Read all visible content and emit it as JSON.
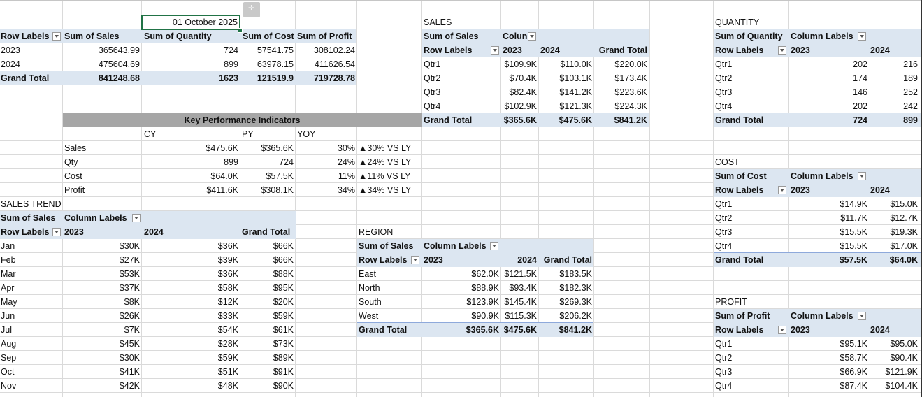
{
  "date_cell": "01 October 2025",
  "summary": {
    "headers": [
      "Row Labels",
      "Sum of Sales",
      "Sum of Quantity",
      "Sum of Cost",
      "Sum of Profit"
    ],
    "rows": [
      [
        "2023",
        "365643.99",
        "724",
        "57541.75",
        "308102.24"
      ],
      [
        "2024",
        "475604.69",
        "899",
        "63978.15",
        "411626.54"
      ]
    ],
    "total": [
      "Grand Total",
      "841248.68",
      "1623",
      "121519.9",
      "719728.78"
    ]
  },
  "kpi": {
    "title": "Key Performance Indicators",
    "col_cy": "CY",
    "col_py": "PY",
    "col_yoy": "YOY",
    "rows": [
      {
        "label": "Sales",
        "cy": "$475.6K",
        "py": "$365.6K",
        "yoy": "30%",
        "vs": "▲30% VS LY"
      },
      {
        "label": "Qty",
        "cy": "899",
        "py": "724",
        "yoy": "24%",
        "vs": "▲24% VS LY"
      },
      {
        "label": "Cost",
        "cy": "$64.0K",
        "py": "$57.5K",
        "yoy": "11%",
        "vs": "▲11% VS LY"
      },
      {
        "label": "Profit",
        "cy": "$411.6K",
        "py": "$308.1K",
        "yoy": "34%",
        "vs": "▲34% VS LY"
      }
    ]
  },
  "sales_trend": {
    "title": "SALES TREND",
    "measure": "Sum of Sales",
    "col_labels": "Column Labels",
    "row_labels": "Row Labels",
    "years": [
      "2023",
      "2024"
    ],
    "grand_total": "Grand Total",
    "rows": [
      [
        "Jan",
        "$30K",
        "$36K",
        "$66K"
      ],
      [
        "Feb",
        "$27K",
        "$39K",
        "$66K"
      ],
      [
        "Mar",
        "$53K",
        "$36K",
        "$88K"
      ],
      [
        "Apr",
        "$37K",
        "$58K",
        "$95K"
      ],
      [
        "May",
        "$8K",
        "$12K",
        "$20K"
      ],
      [
        "Jun",
        "$26K",
        "$33K",
        "$59K"
      ],
      [
        "Jul",
        "$7K",
        "$54K",
        "$61K"
      ],
      [
        "Aug",
        "$45K",
        "$28K",
        "$73K"
      ],
      [
        "Sep",
        "$30K",
        "$59K",
        "$89K"
      ],
      [
        "Oct",
        "$41K",
        "$51K",
        "$91K"
      ],
      [
        "Nov",
        "$42K",
        "$48K",
        "$90K"
      ]
    ]
  },
  "sales_q": {
    "title": "SALES",
    "measure": "Sum of Sales",
    "col_labels": "Colun",
    "row_labels": "Row Labels",
    "years": [
      "2023",
      "2024"
    ],
    "grand_total": "Grand Total",
    "rows": [
      [
        "Qtr1",
        "$109.9K",
        "$110.0K",
        "$220.0K"
      ],
      [
        "Qtr2",
        "$70.4K",
        "$103.1K",
        "$173.4K"
      ],
      [
        "Qtr3",
        "$82.4K",
        "$141.2K",
        "$223.6K"
      ],
      [
        "Qtr4",
        "$102.9K",
        "$121.3K",
        "$224.3K"
      ]
    ],
    "total": [
      "Grand Total",
      "$365.6K",
      "$475.6K",
      "$841.2K"
    ]
  },
  "region": {
    "title": "REGION",
    "measure": "Sum of Sales",
    "col_labels": "Column Labels",
    "row_labels": "Row Labels",
    "years": [
      "2023",
      "2024"
    ],
    "grand_total": "Grand Total",
    "rows": [
      [
        "East",
        "$62.0K",
        "$121.5K",
        "$183.5K"
      ],
      [
        "North",
        "$88.9K",
        "$93.4K",
        "$182.3K"
      ],
      [
        "South",
        "$123.9K",
        "$145.4K",
        "$269.3K"
      ],
      [
        "West",
        "$90.9K",
        "$115.3K",
        "$206.2K"
      ]
    ],
    "total": [
      "Grand Total",
      "$365.6K",
      "$475.6K",
      "$841.2K"
    ]
  },
  "quantity": {
    "title": "QUANTITY",
    "measure": "Sum of Quantity",
    "col_labels": "Column Labels",
    "row_labels": "Row Labels",
    "years": [
      "2023",
      "2024"
    ],
    "rows": [
      [
        "Qtr1",
        "202",
        "216"
      ],
      [
        "Qtr2",
        "174",
        "189"
      ],
      [
        "Qtr3",
        "146",
        "252"
      ],
      [
        "Qtr4",
        "202",
        "242"
      ]
    ],
    "total": [
      "Grand Total",
      "724",
      "899"
    ]
  },
  "cost": {
    "title": "COST",
    "measure": "Sum of Cost",
    "col_labels": "Column Labels",
    "row_labels": "Row Labels",
    "years": [
      "2023",
      "2024"
    ],
    "rows": [
      [
        "Qtr1",
        "$14.9K",
        "$15.0K"
      ],
      [
        "Qtr2",
        "$11.7K",
        "$12.7K"
      ],
      [
        "Qtr3",
        "$15.5K",
        "$19.3K"
      ],
      [
        "Qtr4",
        "$15.5K",
        "$17.0K"
      ]
    ],
    "total": [
      "Grand Total",
      "$57.5K",
      "$64.0K"
    ]
  },
  "profit": {
    "title": "PROFIT",
    "measure": "Sum of Profit",
    "col_labels": "Column Labels",
    "row_labels": "Row Labels",
    "years": [
      "2023",
      "2024"
    ],
    "rows": [
      [
        "Qtr1",
        "$95.1K",
        "$95.0K"
      ],
      [
        "Qtr2",
        "$58.7K",
        "$90.4K"
      ],
      [
        "Qtr3",
        "$66.9K",
        "$121.9K"
      ],
      [
        "Qtr4",
        "$87.4K",
        "$104.4K"
      ]
    ]
  },
  "colors": {
    "pivot_header": "#dce6f1",
    "kpi_header": "#a6a6a6",
    "selection": "#217346",
    "gridline": "#dadada"
  }
}
